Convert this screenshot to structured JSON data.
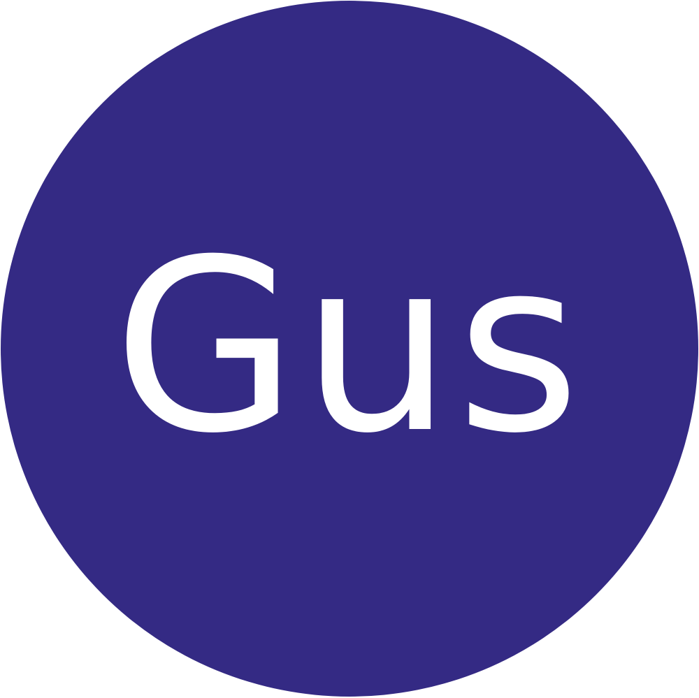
{
  "avatar": {
    "initials": "Gus",
    "background_color": "#342a84",
    "text_color": "#ffffff"
  }
}
